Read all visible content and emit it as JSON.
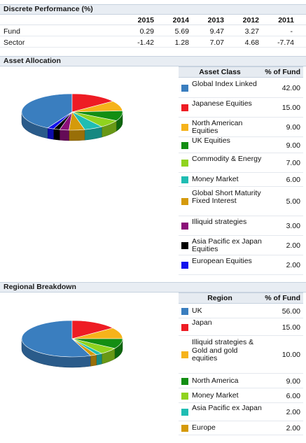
{
  "performance": {
    "title": "Discrete Performance (%)",
    "years": [
      "2015",
      "2014",
      "2013",
      "2012",
      "2011"
    ],
    "rows": [
      {
        "label": "Fund",
        "values": [
          "0.29",
          "5.69",
          "9.47",
          "3.27",
          "-"
        ]
      },
      {
        "label": "Sector",
        "values": [
          "-1.42",
          "1.28",
          "7.07",
          "4.68",
          "-7.74"
        ]
      }
    ]
  },
  "chart_data": [
    {
      "type": "pie",
      "title": "Asset Allocation",
      "column_labels": [
        "Asset Class",
        "% of Fund"
      ],
      "categories": [
        "Global Index Linked",
        "Japanese Equities",
        "North American Equities",
        "UK Equities",
        "Commodity & Energy",
        "Money Market",
        "Global Short Maturity Fixed Interest",
        "Illiquid strategies",
        "Asia Pacific ex Japan Equities",
        "European Equities"
      ],
      "values": [
        42.0,
        15.0,
        9.0,
        9.0,
        7.0,
        6.0,
        5.0,
        3.0,
        2.0,
        2.0
      ],
      "value_labels": [
        "42.00",
        "15.00",
        "9.00",
        "9.00",
        "7.00",
        "6.00",
        "5.00",
        "3.00",
        "2.00",
        "2.00"
      ],
      "colors": [
        "#3a7ebf",
        "#ee1c24",
        "#f6b31b",
        "#138e13",
        "#90d31e",
        "#1fbdb3",
        "#d59a0b",
        "#8b0f78",
        "#000000",
        "#1111ee"
      ]
    },
    {
      "type": "pie",
      "title": "Regional Breakdown",
      "column_labels": [
        "Region",
        "% of Fund"
      ],
      "categories": [
        "UK",
        "Japan",
        "Illiquid strategies & Gold and gold equities",
        "North America",
        "Money Market",
        "Asia Pacific ex Japan",
        "Europe"
      ],
      "values": [
        56.0,
        15.0,
        10.0,
        9.0,
        6.0,
        2.0,
        2.0
      ],
      "value_labels": [
        "56.00",
        "15.00",
        "10.00",
        "9.00",
        "6.00",
        "2.00",
        "2.00"
      ],
      "colors": [
        "#3a7ebf",
        "#ee1c24",
        "#f6b31b",
        "#138e13",
        "#90d31e",
        "#1fbdb3",
        "#d59a0b"
      ]
    }
  ]
}
